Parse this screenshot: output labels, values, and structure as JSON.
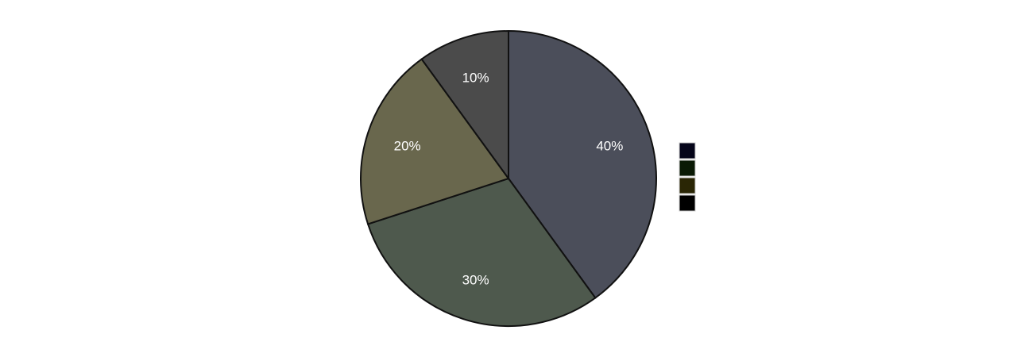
{
  "chart_data": {
    "type": "pie",
    "title": "",
    "values": [
      40,
      30,
      20,
      10
    ],
    "labels": [
      "40%",
      "30%",
      "20%",
      "10%"
    ],
    "slice_colors": [
      "#4b4e5a",
      "#4e594d",
      "#69674d",
      "#4b4b4b"
    ],
    "legend": {
      "placement": "right",
      "entries": [
        {
          "name": "",
          "color": "#05051a"
        },
        {
          "name": "",
          "color": "#0a1a05"
        },
        {
          "name": "",
          "color": "#2a2605"
        },
        {
          "name": "",
          "color": "#000000"
        }
      ]
    },
    "direction": "clockwise",
    "start": "top",
    "label_color": "#ffffff",
    "outline_color": "#111111"
  }
}
